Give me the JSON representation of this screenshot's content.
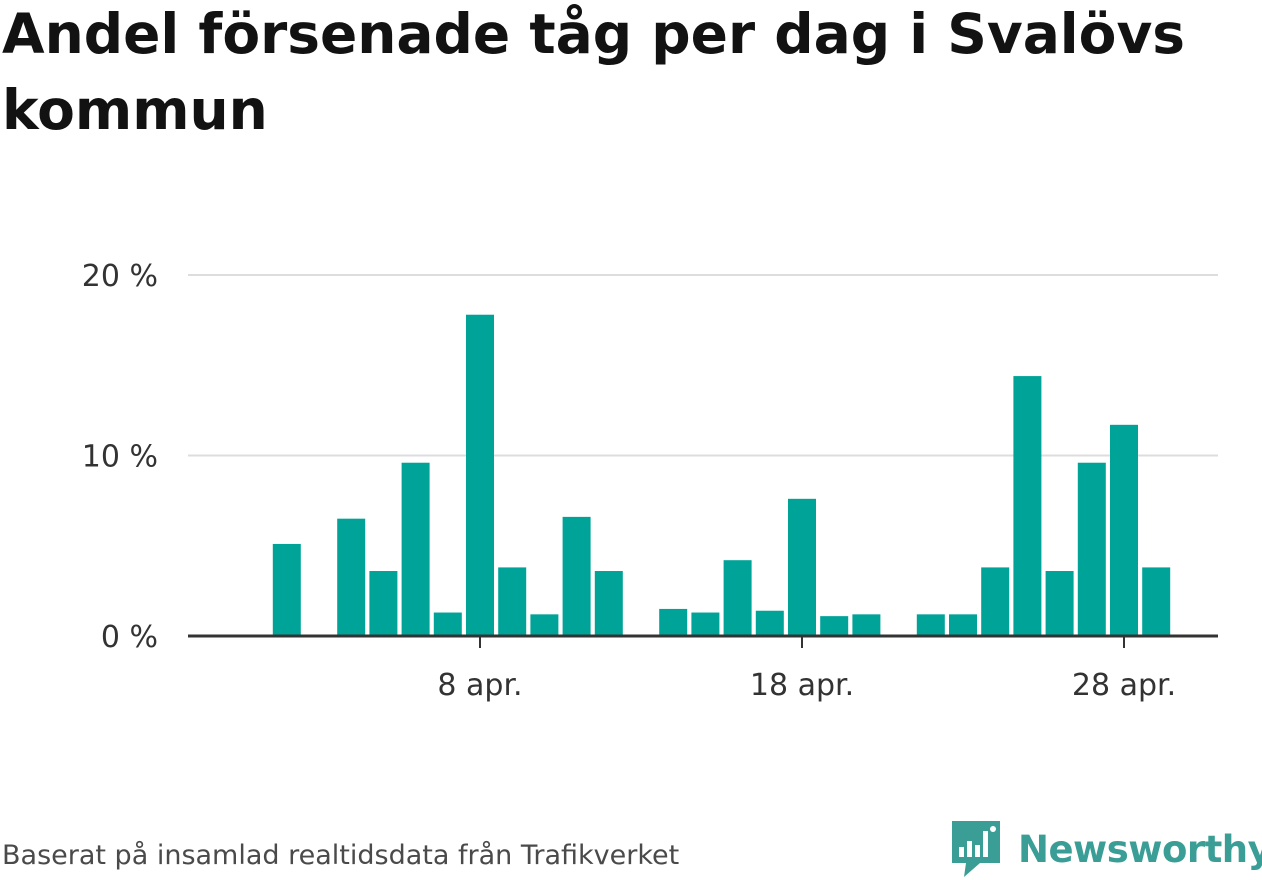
{
  "title": "Andel försenade tåg per dag i Svalövs kommun",
  "source": "Baserat på insamlad realtidsdata från Trafikverket",
  "brand": {
    "name": "Newsworthy",
    "icon": "newsworthy-logo-icon",
    "color": "#3a9e96"
  },
  "colors": {
    "bar": "#00a398",
    "grid": "#dddddd",
    "axis": "#333333"
  },
  "chart_data": {
    "type": "bar",
    "ylabel": "",
    "xlabel": "",
    "ylim": [
      0,
      20
    ],
    "y_ticks": [
      {
        "value": 0,
        "label": "0 %"
      },
      {
        "value": 10,
        "label": "10 %"
      },
      {
        "value": 20,
        "label": "20 %"
      }
    ],
    "x_ticks": [
      {
        "day": 8,
        "label": "8 apr."
      },
      {
        "day": 18,
        "label": "18 apr."
      },
      {
        "day": 28,
        "label": "28 apr."
      }
    ],
    "grid": true,
    "categories": [
      "2 apr.",
      "3 apr.",
      "4 apr.",
      "5 apr.",
      "6 apr.",
      "7 apr.",
      "8 apr.",
      "9 apr.",
      "10 apr.",
      "11 apr.",
      "12 apr.",
      "13 apr.",
      "14 apr.",
      "15 apr.",
      "16 apr.",
      "17 apr.",
      "18 apr.",
      "19 apr.",
      "20 apr.",
      "21 apr.",
      "22 apr.",
      "23 apr.",
      "24 apr.",
      "25 apr.",
      "26 apr.",
      "27 apr.",
      "28 apr.",
      "29 apr."
    ],
    "days": [
      2,
      3,
      4,
      5,
      6,
      7,
      8,
      9,
      10,
      11,
      12,
      13,
      14,
      15,
      16,
      17,
      18,
      19,
      20,
      21,
      22,
      23,
      24,
      25,
      26,
      27,
      28,
      29
    ],
    "values": [
      5.1,
      0,
      6.5,
      3.6,
      9.6,
      1.3,
      17.8,
      3.8,
      1.2,
      6.6,
      3.6,
      0,
      1.5,
      1.3,
      4.2,
      1.4,
      7.6,
      1.1,
      1.2,
      0,
      1.2,
      1.2,
      3.8,
      14.4,
      3.6,
      9.6,
      11.7,
      3.8
    ]
  }
}
